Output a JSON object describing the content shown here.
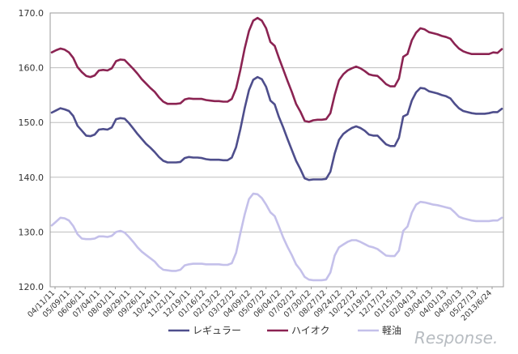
{
  "chart_data": {
    "type": "line",
    "title": "",
    "xlabel": "",
    "ylabel": "",
    "ylim": [
      120,
      170
    ],
    "yticks": [
      "120.0",
      "130.0",
      "140.0",
      "150.0",
      "160.0",
      "170.0"
    ],
    "grid": true,
    "legend_position": "bottom",
    "x_tick_labels": [
      "04/11/11",
      "05/09/11",
      "06/06/11",
      "07/04/11",
      "08/01/11",
      "08/29/11",
      "09/26/11",
      "10/24/11",
      "11/21/11",
      "12/19/11",
      "01/16/12",
      "02/13/12",
      "03/12/12",
      "04/09/12",
      "05/07/12",
      "06/04/12",
      "07/02/12",
      "07/30/12",
      "08/27/12",
      "09/24/12",
      "10/22/12",
      "11/19/12",
      "12/17/12",
      "01/15/13",
      "02/04/13",
      "03/04/13",
      "04/01/13",
      "04/30/13",
      "05/27/13",
      "2013/6/24"
    ],
    "series": [
      {
        "name": "レギュラー",
        "color": "#4e4e8c",
        "values": [
          151.8,
          152.2,
          152.6,
          152.4,
          152.1,
          151.2,
          149.4,
          148.5,
          147.6,
          147.5,
          147.8,
          148.7,
          148.8,
          148.7,
          149.1,
          150.6,
          150.8,
          150.7,
          149.9,
          148.9,
          147.9,
          147.0,
          146.1,
          145.4,
          144.6,
          143.7,
          143.0,
          142.7,
          142.7,
          142.7,
          142.8,
          143.5,
          143.7,
          143.6,
          143.6,
          143.5,
          143.3,
          143.2,
          143.2,
          143.2,
          143.1,
          143.1,
          143.6,
          145.5,
          148.8,
          152.6,
          155.9,
          157.8,
          158.3,
          157.9,
          156.5,
          154.0,
          153.3,
          151.0,
          149.1,
          147.0,
          145.0,
          143.0,
          141.5,
          139.8,
          139.5,
          139.6,
          139.6,
          139.6,
          139.7,
          141.0,
          144.3,
          146.8,
          147.9,
          148.5,
          149.0,
          149.3,
          149.0,
          148.5,
          147.8,
          147.6,
          147.6,
          146.8,
          146.0,
          145.7,
          145.7,
          147.2,
          151.1,
          151.5,
          154.0,
          155.5,
          156.3,
          156.2,
          155.7,
          155.5,
          155.3,
          155.0,
          154.8,
          154.4,
          153.4,
          152.6,
          152.1,
          151.9,
          151.7,
          151.6,
          151.6,
          151.6,
          151.7,
          151.9,
          151.9,
          152.5
        ]
      },
      {
        "name": "ハイオク",
        "color": "#8b2352",
        "values": [
          162.8,
          163.2,
          163.5,
          163.3,
          162.8,
          161.8,
          160.1,
          159.2,
          158.5,
          158.3,
          158.6,
          159.5,
          159.6,
          159.5,
          159.9,
          161.2,
          161.5,
          161.4,
          160.6,
          159.8,
          158.9,
          157.9,
          157.1,
          156.3,
          155.6,
          154.6,
          153.8,
          153.4,
          153.4,
          153.4,
          153.5,
          154.2,
          154.4,
          154.3,
          154.3,
          154.3,
          154.1,
          154.0,
          153.9,
          153.9,
          153.8,
          153.8,
          154.3,
          156.2,
          159.6,
          163.5,
          166.7,
          168.6,
          169.1,
          168.6,
          167.2,
          164.7,
          164.0,
          161.8,
          159.7,
          157.6,
          155.6,
          153.4,
          152.0,
          150.3,
          150.1,
          150.4,
          150.5,
          150.5,
          150.6,
          151.7,
          155.0,
          157.7,
          158.8,
          159.5,
          159.9,
          160.2,
          159.9,
          159.4,
          158.8,
          158.6,
          158.5,
          157.8,
          157.0,
          156.6,
          156.6,
          158.0,
          162.0,
          162.5,
          165.0,
          166.4,
          167.2,
          167.0,
          166.5,
          166.3,
          166.1,
          165.8,
          165.6,
          165.3,
          164.3,
          163.5,
          163.0,
          162.7,
          162.5,
          162.5,
          162.5,
          162.5,
          162.5,
          162.8,
          162.7,
          163.4
        ]
      },
      {
        "name": "軽油",
        "color": "#c4c0ea",
        "values": [
          131.2,
          131.9,
          132.6,
          132.5,
          132.1,
          131.1,
          129.6,
          128.8,
          128.7,
          128.7,
          128.8,
          129.2,
          129.2,
          129.1,
          129.3,
          130.0,
          130.2,
          129.9,
          129.1,
          128.2,
          127.2,
          126.4,
          125.8,
          125.2,
          124.6,
          123.7,
          123.1,
          123.0,
          122.9,
          122.9,
          123.1,
          123.9,
          124.1,
          124.2,
          124.2,
          124.2,
          124.1,
          124.1,
          124.1,
          124.1,
          124.0,
          124.0,
          124.3,
          126.2,
          129.8,
          133.2,
          136.0,
          137.0,
          136.9,
          136.2,
          135.0,
          133.6,
          132.9,
          131.0,
          129.0,
          127.3,
          125.8,
          124.1,
          123.1,
          121.8,
          121.3,
          121.2,
          121.2,
          121.2,
          121.3,
          122.6,
          125.7,
          127.2,
          127.7,
          128.2,
          128.5,
          128.5,
          128.2,
          127.8,
          127.4,
          127.2,
          126.9,
          126.3,
          125.7,
          125.6,
          125.6,
          126.6,
          130.2,
          131.0,
          133.5,
          135.0,
          135.5,
          135.4,
          135.2,
          135.0,
          134.9,
          134.7,
          134.5,
          134.3,
          133.6,
          132.8,
          132.5,
          132.3,
          132.1,
          132.0,
          132.0,
          132.0,
          132.0,
          132.1,
          132.1,
          132.6
        ]
      }
    ]
  },
  "watermark_text": "Response."
}
